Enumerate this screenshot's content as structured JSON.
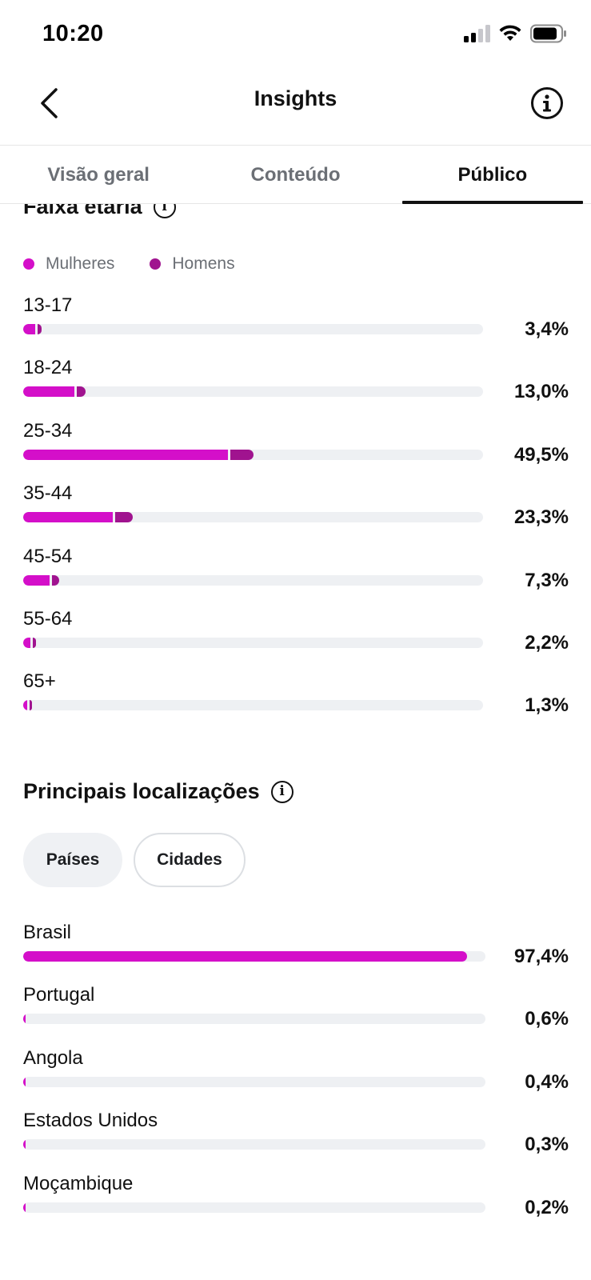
{
  "status_bar": {
    "time": "10:20"
  },
  "header": {
    "title": "Insights"
  },
  "tabs": [
    {
      "label": "Visão geral",
      "active": false
    },
    {
      "label": "Conteúdo",
      "active": false
    },
    {
      "label": "Público",
      "active": true
    }
  ],
  "age_section": {
    "title": "Faixa etária",
    "legend": {
      "women": "Mulheres",
      "men": "Homens"
    },
    "colors": {
      "women": "#d40fc9",
      "men": "#a0138f",
      "track": "#eef0f3"
    },
    "rows": [
      {
        "label": "13-17",
        "value": "3,4%"
      },
      {
        "label": "18-24",
        "value": "13,0%"
      },
      {
        "label": "25-34",
        "value": "49,5%"
      },
      {
        "label": "35-44",
        "value": "23,3%"
      },
      {
        "label": "45-54",
        "value": "7,3%"
      },
      {
        "label": "55-64",
        "value": "2,2%"
      },
      {
        "label": "65+",
        "value": "1,3%"
      }
    ]
  },
  "locations_section": {
    "title": "Principais localizações",
    "filters": {
      "countries": "Países",
      "cities": "Cidades"
    },
    "rows": [
      {
        "label": "Brasil",
        "value": "97,4%"
      },
      {
        "label": "Portugal",
        "value": "0,6%"
      },
      {
        "label": "Angola",
        "value": "0,4%"
      },
      {
        "label": "Estados Unidos",
        "value": "0,3%"
      },
      {
        "label": "Moçambique",
        "value": "0,2%"
      }
    ]
  },
  "chart_data": [
    {
      "type": "bar",
      "title": "Faixa etária",
      "categories": [
        "13-17",
        "18-24",
        "25-34",
        "35-44",
        "45-54",
        "55-64",
        "65+"
      ],
      "series": [
        {
          "name": "Mulheres",
          "values": [
            2.6,
            11.2,
            44.5,
            19.4,
            5.8,
            1.6,
            0.9
          ]
        },
        {
          "name": "Homens",
          "values": [
            0.8,
            1.8,
            5.0,
            3.9,
            1.5,
            0.6,
            0.4
          ]
        }
      ],
      "totals": [
        3.4,
        13.0,
        49.5,
        23.3,
        7.3,
        2.2,
        1.3
      ],
      "stacked": true,
      "orientation": "horizontal",
      "xlim": [
        0,
        100
      ],
      "legend": "top-left"
    },
    {
      "type": "bar",
      "title": "Principais localizações",
      "categories": [
        "Brasil",
        "Portugal",
        "Angola",
        "Estados Unidos",
        "Moçambique"
      ],
      "values": [
        97.4,
        0.6,
        0.4,
        0.3,
        0.2
      ],
      "orientation": "horizontal",
      "xlim": [
        0,
        100
      ]
    }
  ]
}
